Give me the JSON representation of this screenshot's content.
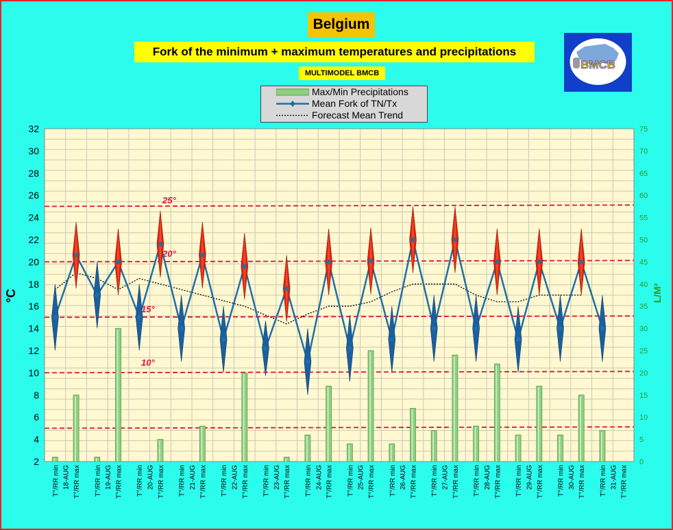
{
  "header": {
    "country": "Belgium",
    "subtitle": "Fork of the minimum + maximum temperatures and precipitations",
    "model": "MULTIMODEL BMCB"
  },
  "logo": {
    "text": "BMCB",
    "icon": "bmcb-logo-icon"
  },
  "legend": {
    "items": [
      {
        "label": "Max/Min Precipitations",
        "icon": "bar-swatch-icon"
      },
      {
        "label": "Mean Fork of TN/Tx",
        "icon": "line-diamond-swatch-icon"
      },
      {
        "label": "Forecast Mean Trend",
        "icon": "dotted-line-swatch-icon"
      }
    ]
  },
  "colors": {
    "background": "#2BFCEC",
    "plot_area": "#FFF8D0",
    "fork_line": "#1F6FA8",
    "min_marker": "#1A5FA0",
    "max_marker": "#E02010",
    "precip_bar": "#8ED080",
    "reference_line": "#E0103A",
    "frame_border": "#E0242C"
  },
  "chart_data": {
    "type": "line",
    "ylabel_left": "°C",
    "ylabel_right": "L/M²",
    "ylim_left": [
      2,
      32
    ],
    "yticks_left": [
      "2",
      "4",
      "6",
      "8",
      "10",
      "12",
      "14",
      "16",
      "18",
      "20",
      "22",
      "24",
      "26",
      "28",
      "30",
      "32"
    ],
    "ylim_right": [
      0,
      75
    ],
    "yticks_right": [
      "0",
      "5",
      "10",
      "15",
      "20",
      "25",
      "30",
      "35",
      "40",
      "45",
      "50",
      "55",
      "60",
      "65",
      "70",
      "75"
    ],
    "grid": true,
    "categories": [
      "T°/RR min",
      "T°/RR max",
      "T°/RR min",
      "T°/RR max",
      "T°/RR min",
      "T°/RR max",
      "T°/RR min",
      "T°/RR max",
      "T°/RR min",
      "T°/RR max",
      "T°/RR min",
      "T°/RR max",
      "T°/RR min",
      "T°/RR max",
      "T°/RR min",
      "T°/RR max",
      "T°/RR min",
      "T°/RR max",
      "T°/RR min",
      "T°/RR max",
      "T°/RR min",
      "T°/RR max",
      "T°/RR min",
      "T°/RR max",
      "T°/RR min",
      "T°/RR max",
      "T°/RR min",
      "T°/RR max"
    ],
    "dates": [
      "18-AUG",
      "19-AUG",
      "20-AUG",
      "21-AUG",
      "22-AUG",
      "23-AUG",
      "24-AUG",
      "25-AUG",
      "26-AUG",
      "27-AUG",
      "28-AUG",
      "29-AUG",
      "30-AUG",
      "31-AUG"
    ],
    "series": [
      {
        "name": "Mean Fork of TN/Tx",
        "values": [
          15,
          20.6,
          17,
          20,
          15,
          21.6,
          14,
          20.6,
          13,
          19.6,
          12.2,
          17.6,
          11,
          20,
          12.2,
          20.1,
          13,
          22,
          14,
          22,
          14,
          20,
          13,
          20,
          14,
          20,
          14,
          null
        ]
      },
      {
        "name": "Forecast Mean Trend",
        "values": [
          17.5,
          19,
          18.5,
          17.5,
          18.5,
          18,
          17.5,
          17,
          16.5,
          16,
          15.2,
          14.4,
          15.3,
          16,
          16,
          16.4,
          17.3,
          18,
          18,
          18,
          17,
          16.4,
          16.4,
          17,
          17,
          17,
          null,
          null
        ]
      },
      {
        "name": "Max/Min Precipitations",
        "axis": "right",
        "values": [
          1,
          15,
          1,
          30,
          0,
          5,
          0,
          8,
          0,
          20,
          0,
          1,
          6,
          17,
          4,
          25,
          4,
          12,
          7,
          24,
          8,
          22,
          6,
          17,
          6,
          15,
          7,
          0
        ]
      }
    ],
    "min_spread": [
      3,
      3,
      3,
      3,
      3,
      3,
      3,
      3,
      3,
      3,
      2.5,
      3,
      3,
      3,
      3,
      3,
      3,
      3,
      3,
      3,
      3,
      3,
      3,
      3,
      3,
      3,
      3,
      0
    ],
    "max_spread": [
      3.5,
      3,
      3,
      3,
      3,
      3,
      3,
      3,
      3,
      3,
      3,
      3,
      3,
      3,
      3,
      3,
      3,
      3,
      3,
      3,
      3,
      3,
      3,
      3,
      3,
      3,
      0,
      0
    ],
    "reference_lines": [
      {
        "value": 25,
        "label": "25°"
      },
      {
        "value": 20,
        "label": "20°"
      },
      {
        "value": 15,
        "label": "15°"
      },
      {
        "value": 10,
        "label": "10°"
      },
      {
        "value": 5,
        "label": ""
      }
    ]
  }
}
